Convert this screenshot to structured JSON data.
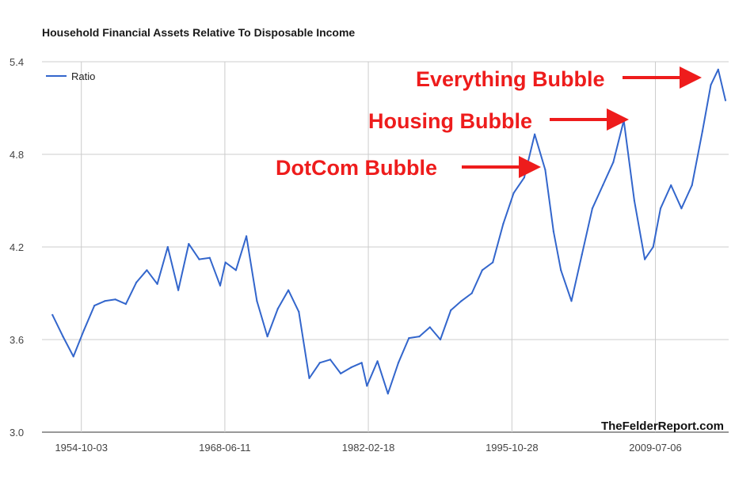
{
  "chart_data": {
    "type": "line",
    "title": "Household Financial Assets Relative To Disposable Income",
    "xlabel": "",
    "ylabel": "",
    "x_tick_labels": [
      "1954-10-03",
      "1968-06-11",
      "1982-02-18",
      "1995-10-28",
      "2009-07-06"
    ],
    "y_tick_labels": [
      "3.0",
      "3.6",
      "4.2",
      "4.8",
      "5.4"
    ],
    "ylim": [
      3.0,
      5.4
    ],
    "xlim": [
      1951.0,
      2016.5
    ],
    "grid": true,
    "legend_position": "top-left",
    "series": [
      {
        "name": "Ratio",
        "color": "#3366cc",
        "x": [
          1952.0,
          1953.0,
          1954.0,
          1955.0,
          1956.0,
          1957.0,
          1958.0,
          1959.0,
          1960.0,
          1961.0,
          1962.0,
          1963.0,
          1964.0,
          1965.0,
          1966.0,
          1967.0,
          1968.0,
          1968.5,
          1969.5,
          1970.5,
          1971.5,
          1972.5,
          1973.5,
          1974.5,
          1975.5,
          1976.5,
          1977.5,
          1978.5,
          1979.5,
          1980.5,
          1981.5,
          1982.0,
          1983.0,
          1984.0,
          1985.0,
          1986.0,
          1987.0,
          1988.0,
          1989.0,
          1990.0,
          1991.0,
          1992.0,
          1993.0,
          1994.0,
          1995.0,
          1996.0,
          1997.0,
          1998.0,
          1999.0,
          1999.8,
          2000.5,
          2001.5,
          2002.5,
          2003.5,
          2004.5,
          2005.5,
          2006.5,
          2007.5,
          2008.5,
          2009.3,
          2010.0,
          2011.0,
          2012.0,
          2013.0,
          2014.0,
          2014.8,
          2015.5,
          2016.2
        ],
        "values": [
          3.76,
          3.62,
          3.49,
          3.66,
          3.82,
          3.85,
          3.86,
          3.83,
          3.97,
          4.05,
          3.96,
          4.2,
          3.92,
          4.22,
          4.12,
          4.13,
          3.95,
          4.1,
          4.05,
          4.27,
          3.85,
          3.62,
          3.8,
          3.92,
          3.78,
          3.35,
          3.45,
          3.47,
          3.38,
          3.42,
          3.45,
          3.3,
          3.46,
          3.25,
          3.45,
          3.61,
          3.62,
          3.68,
          3.6,
          3.79,
          3.85,
          3.9,
          4.05,
          4.1,
          4.35,
          4.55,
          4.65,
          4.93,
          4.7,
          4.3,
          4.05,
          3.85,
          4.15,
          4.45,
          4.6,
          4.75,
          5.02,
          4.5,
          4.12,
          4.2,
          4.45,
          4.6,
          4.45,
          4.6,
          4.95,
          5.25,
          5.35,
          5.15
        ]
      }
    ],
    "annotations": [
      "Everything Bubble",
      "Housing Bubble",
      "DotCom Bubble"
    ],
    "source": "TheFelderReport.com"
  }
}
